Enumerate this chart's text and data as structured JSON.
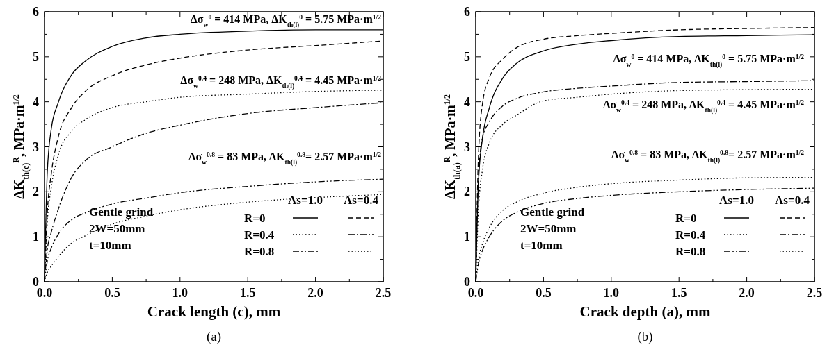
{
  "chart_data": [
    {
      "type": "line",
      "xlabel": "Crack length (c), mm",
      "ylabel": "ΔK$_{th(c)}$$^{R}$, MPa·m$^{1/2}$",
      "x": [
        0,
        0.02,
        0.05,
        0.1,
        0.2,
        0.3,
        0.5,
        0.75,
        1.0,
        1.5,
        2.0,
        2.5
      ],
      "xlim": [
        0,
        2.5
      ],
      "ylim": [
        0,
        6
      ],
      "xticks": [
        {
          "value": 0,
          "label": "0.0"
        },
        {
          "value": 0.25,
          "label": null
        },
        {
          "value": 0.5,
          "label": "0.5"
        },
        {
          "value": 0.75,
          "label": null
        },
        {
          "value": 1,
          "label": "1.0"
        },
        {
          "value": 1.25,
          "label": null
        },
        {
          "value": 1.5,
          "label": "1.5"
        },
        {
          "value": 1.75,
          "label": null
        },
        {
          "value": 2,
          "label": "2.0"
        },
        {
          "value": 2.25,
          "label": null
        },
        {
          "value": 2.5,
          "label": "2.5"
        }
      ],
      "yticks": [
        0,
        {
          "value": 0.5,
          "label": null
        },
        1,
        {
          "value": 1.5,
          "label": null
        },
        2,
        {
          "value": 2.5,
          "label": null
        },
        3,
        {
          "value": 3.5,
          "label": null
        },
        4,
        {
          "value": 4.5,
          "label": null
        },
        5,
        {
          "value": 5.5,
          "label": null
        },
        6
      ],
      "marker": "none",
      "series": [
        {
          "color": "#000000",
          "line_style": "solid",
          "values": [
            0,
            2.4,
            3.4,
            3.97,
            4.6,
            4.9,
            5.23,
            5.42,
            5.5,
            5.57,
            5.6,
            5.6
          ]
        },
        {
          "color": "#000000",
          "line_style": "dashed",
          "values": [
            0,
            1.5,
            2.4,
            3.2,
            3.87,
            4.23,
            4.58,
            4.82,
            4.97,
            5.15,
            5.25,
            5.35
          ]
        },
        {
          "color": "#000000",
          "line_style": "dotted",
          "values": [
            0,
            1.3,
            2.1,
            2.8,
            3.35,
            3.6,
            3.87,
            4.0,
            4.1,
            4.17,
            4.23,
            4.26
          ]
        },
        {
          "color": "#000000",
          "line_style": "dashdot",
          "values": [
            0,
            0.7,
            1.1,
            1.6,
            2.32,
            2.69,
            3.0,
            3.3,
            3.48,
            3.74,
            3.87,
            3.98
          ]
        },
        {
          "color": "#000000",
          "line_style": "dashdotdot",
          "values": [
            0,
            0.45,
            0.75,
            1.05,
            1.38,
            1.53,
            1.73,
            1.86,
            1.98,
            2.12,
            2.22,
            2.28
          ]
        },
        {
          "color": "#000000",
          "line_style": "dotted",
          "values": [
            0,
            0.2,
            0.35,
            0.55,
            0.86,
            1.02,
            1.28,
            1.46,
            1.6,
            1.77,
            1.87,
            1.94
          ]
        }
      ],
      "annotations": [
        "Δσ$_{w}$$^{0}$ = 414 MPa, ΔK$_{th(l)}$$^{0}$ = 5.75 MPa·m$^{1/2}$",
        "Δσ$_{w}$$^{0.4}$ = 248 MPa, ΔK$_{th(l)}$$^{0.4}$ = 4.45 MPa·m$^{1/2}$",
        "Δσ$_{w}$$^{0.8}$ = 83 MPa, ΔK$_{th(l)}$$^{0.8}$= 2.57 MPa·m$^{1/2}$",
        "As=1.0",
        "As=0.4",
        "R=0",
        "R=0.4",
        "R=0.8",
        "Gentle grind",
        "2W=50mm",
        "t=10mm",
        "(a)"
      ]
    },
    {
      "type": "line",
      "xlabel": "Crack depth (a), mm",
      "ylabel": "ΔK$_{th(a)}$$^{R}$, MPa·m$^{1/2}$",
      "x": [
        0,
        0.02,
        0.05,
        0.1,
        0.2,
        0.3,
        0.5,
        0.75,
        1.0,
        1.5,
        2.0,
        2.5
      ],
      "xlim": [
        0,
        2.5
      ],
      "ylim": [
        0,
        6
      ],
      "xticks": [
        {
          "value": 0,
          "label": "0.0"
        },
        {
          "value": 0.25,
          "label": null
        },
        {
          "value": 0.5,
          "label": "0.5"
        },
        {
          "value": 0.75,
          "label": null
        },
        {
          "value": 1,
          "label": "1.0"
        },
        {
          "value": 1.25,
          "label": null
        },
        {
          "value": 1.5,
          "label": "1.5"
        },
        {
          "value": 1.75,
          "label": null
        },
        {
          "value": 2,
          "label": "2.0"
        },
        {
          "value": 2.25,
          "label": null
        },
        {
          "value": 2.5,
          "label": "2.5"
        }
      ],
      "yticks": [
        0,
        {
          "value": 0.5,
          "label": null
        },
        1,
        {
          "value": 1.5,
          "label": null
        },
        2,
        {
          "value": 2.5,
          "label": null
        },
        3,
        {
          "value": 3.5,
          "label": null
        },
        4,
        {
          "value": 4.5,
          "label": null
        },
        5,
        {
          "value": 5.5,
          "label": null
        },
        6
      ],
      "marker": "none",
      "series": [
        {
          "color": "#000000",
          "line_style": "solid",
          "values": [
            0,
            2.2,
            3.19,
            3.86,
            4.53,
            4.85,
            5.13,
            5.28,
            5.36,
            5.45,
            5.47,
            5.49
          ]
        },
        {
          "color": "#000000",
          "line_style": "dashed",
          "values": [
            0,
            2.8,
            3.96,
            4.53,
            4.95,
            5.2,
            5.39,
            5.47,
            5.52,
            5.6,
            5.63,
            5.65
          ]
        },
        {
          "color": "#000000",
          "line_style": "dotted",
          "values": [
            0,
            1.6,
            2.5,
            3.08,
            3.5,
            3.7,
            4.02,
            4.1,
            4.17,
            4.25,
            4.27,
            4.28
          ]
        },
        {
          "color": "#000000",
          "line_style": "dashdot",
          "values": [
            0,
            2.3,
            3.2,
            3.55,
            3.91,
            4.07,
            4.22,
            4.3,
            4.35,
            4.43,
            4.45,
            4.47
          ]
        },
        {
          "color": "#000000",
          "line_style": "dashdotdot",
          "values": [
            0,
            0.4,
            0.7,
            1.0,
            1.36,
            1.54,
            1.74,
            1.85,
            1.92,
            2.0,
            2.05,
            2.08
          ]
        },
        {
          "color": "#000000",
          "line_style": "dotted",
          "values": [
            0,
            0.5,
            0.85,
            1.2,
            1.59,
            1.77,
            1.97,
            2.1,
            2.18,
            2.26,
            2.31,
            2.32
          ]
        }
      ],
      "annotations": [
        "Δσ$_{w}$$^{0}$ = 414 MPa, ΔK$_{th(l)}$$^{0}$ = 5.75 MPa·m$^{1/2}$",
        "Δσ$_{w}$$^{0.4}$ = 248 MPa, ΔK$_{th(l)}$$^{0.4}$ = 4.45 MPa·m$^{1/2}$",
        "Δσ$_{w}$$^{0.8}$ = 83 MPa, ΔK$_{th(l)}$$^{0.8}$= 2.57 MPa·m$^{1/2}$",
        "As=1.0",
        "As=0.4",
        "R=0",
        "R=0.4",
        "R=0.8",
        "Gentle grind",
        "2W=50mm",
        "t=10mm",
        "(b)"
      ]
    }
  ]
}
